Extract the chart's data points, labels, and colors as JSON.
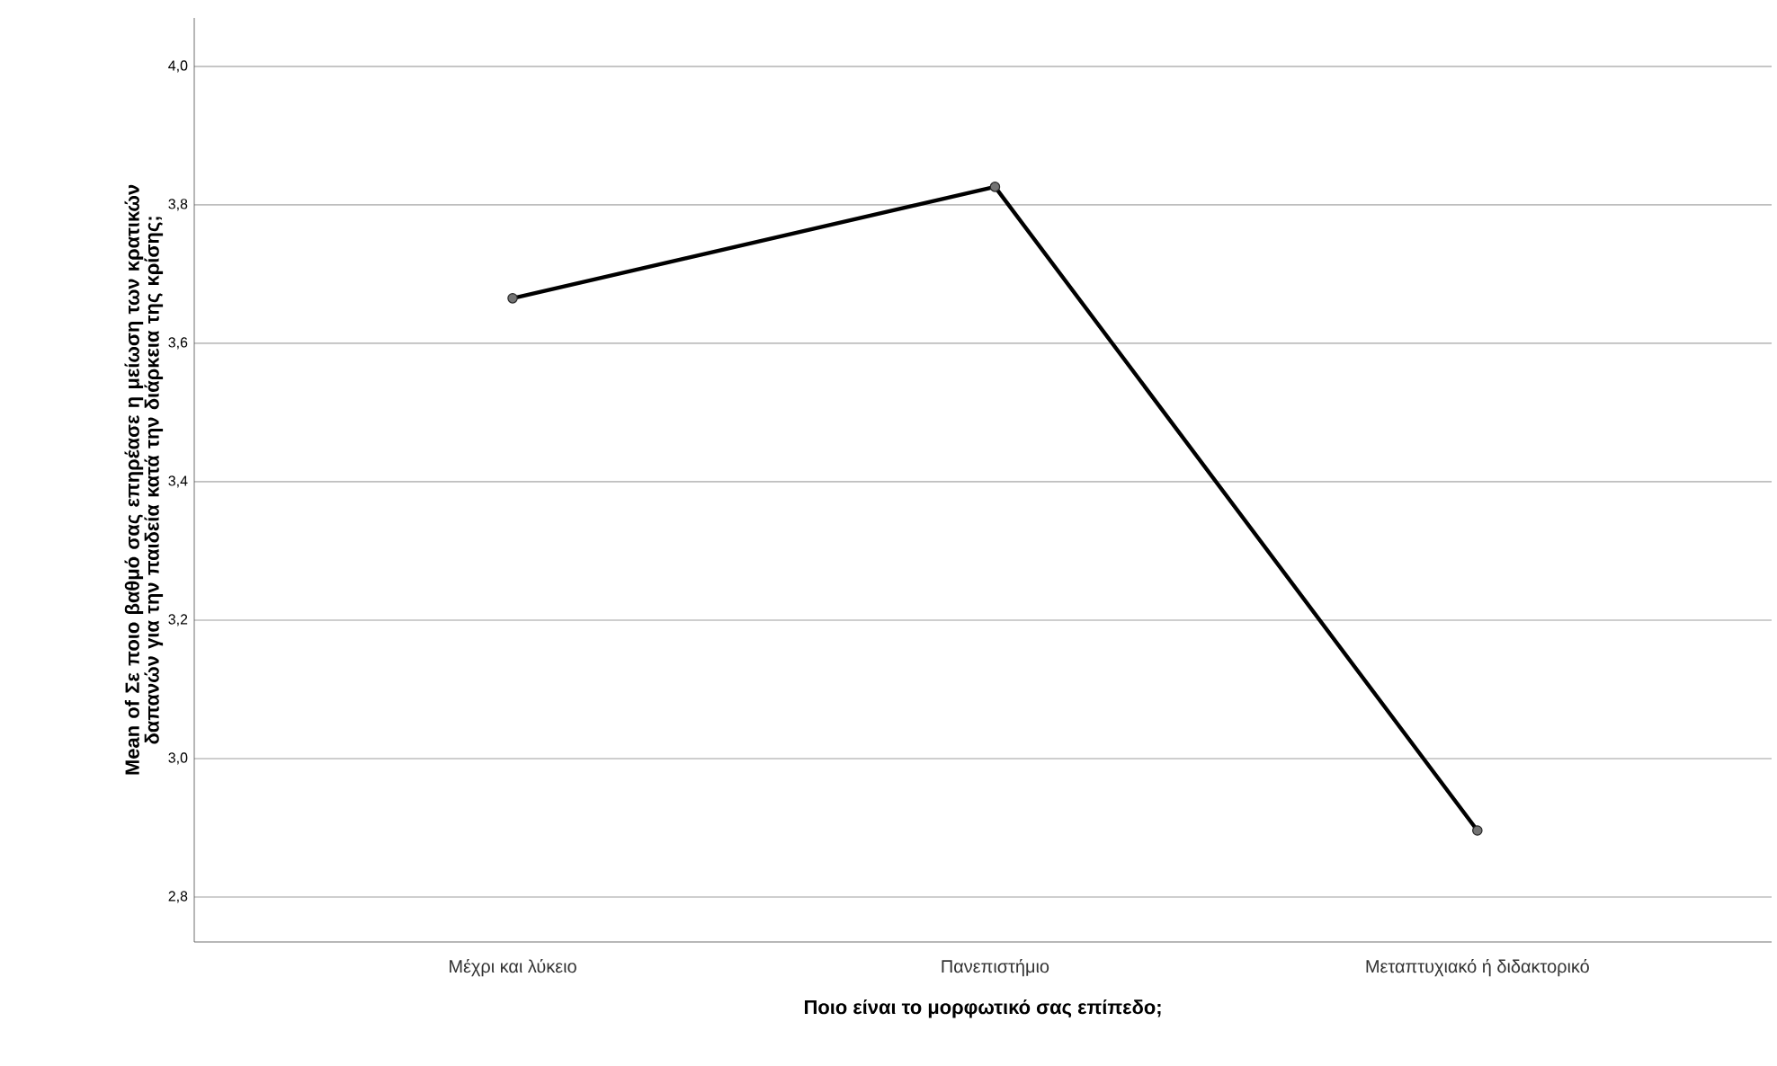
{
  "chart_data": {
    "type": "line",
    "xlabel": "Ποιο είναι το μορφωτικό σας επίπεδο;",
    "ylabel": "Mean of Σε ποιο βαθμό σας επηρέασε η μείωση των κρατικών δαπανών για την παιδεία κατά την διάρκεια της κρίσης;",
    "categories": [
      "Μέχρι και λύκειο",
      "Πανεπιστήμιο",
      "Μεταπτυχιακό ή διδακτορικό"
    ],
    "series": [
      {
        "color": "#000000",
        "values": [
          3.665,
          3.826,
          2.896
        ]
      }
    ],
    "ylim": [
      2.735,
      4.07
    ],
    "yticks": [
      {
        "value": 2.8,
        "label": "2,8"
      },
      {
        "value": 3.0,
        "label": "3,0"
      },
      {
        "value": 3.2,
        "label": "3,2"
      },
      {
        "value": 3.4,
        "label": "3,4"
      },
      {
        "value": 3.6,
        "label": "3,6"
      },
      {
        "value": 3.8,
        "label": "3,8"
      },
      {
        "value": 4.0,
        "label": "4,0"
      }
    ],
    "grid": "y",
    "marker": "circle",
    "line_style": "solid"
  }
}
